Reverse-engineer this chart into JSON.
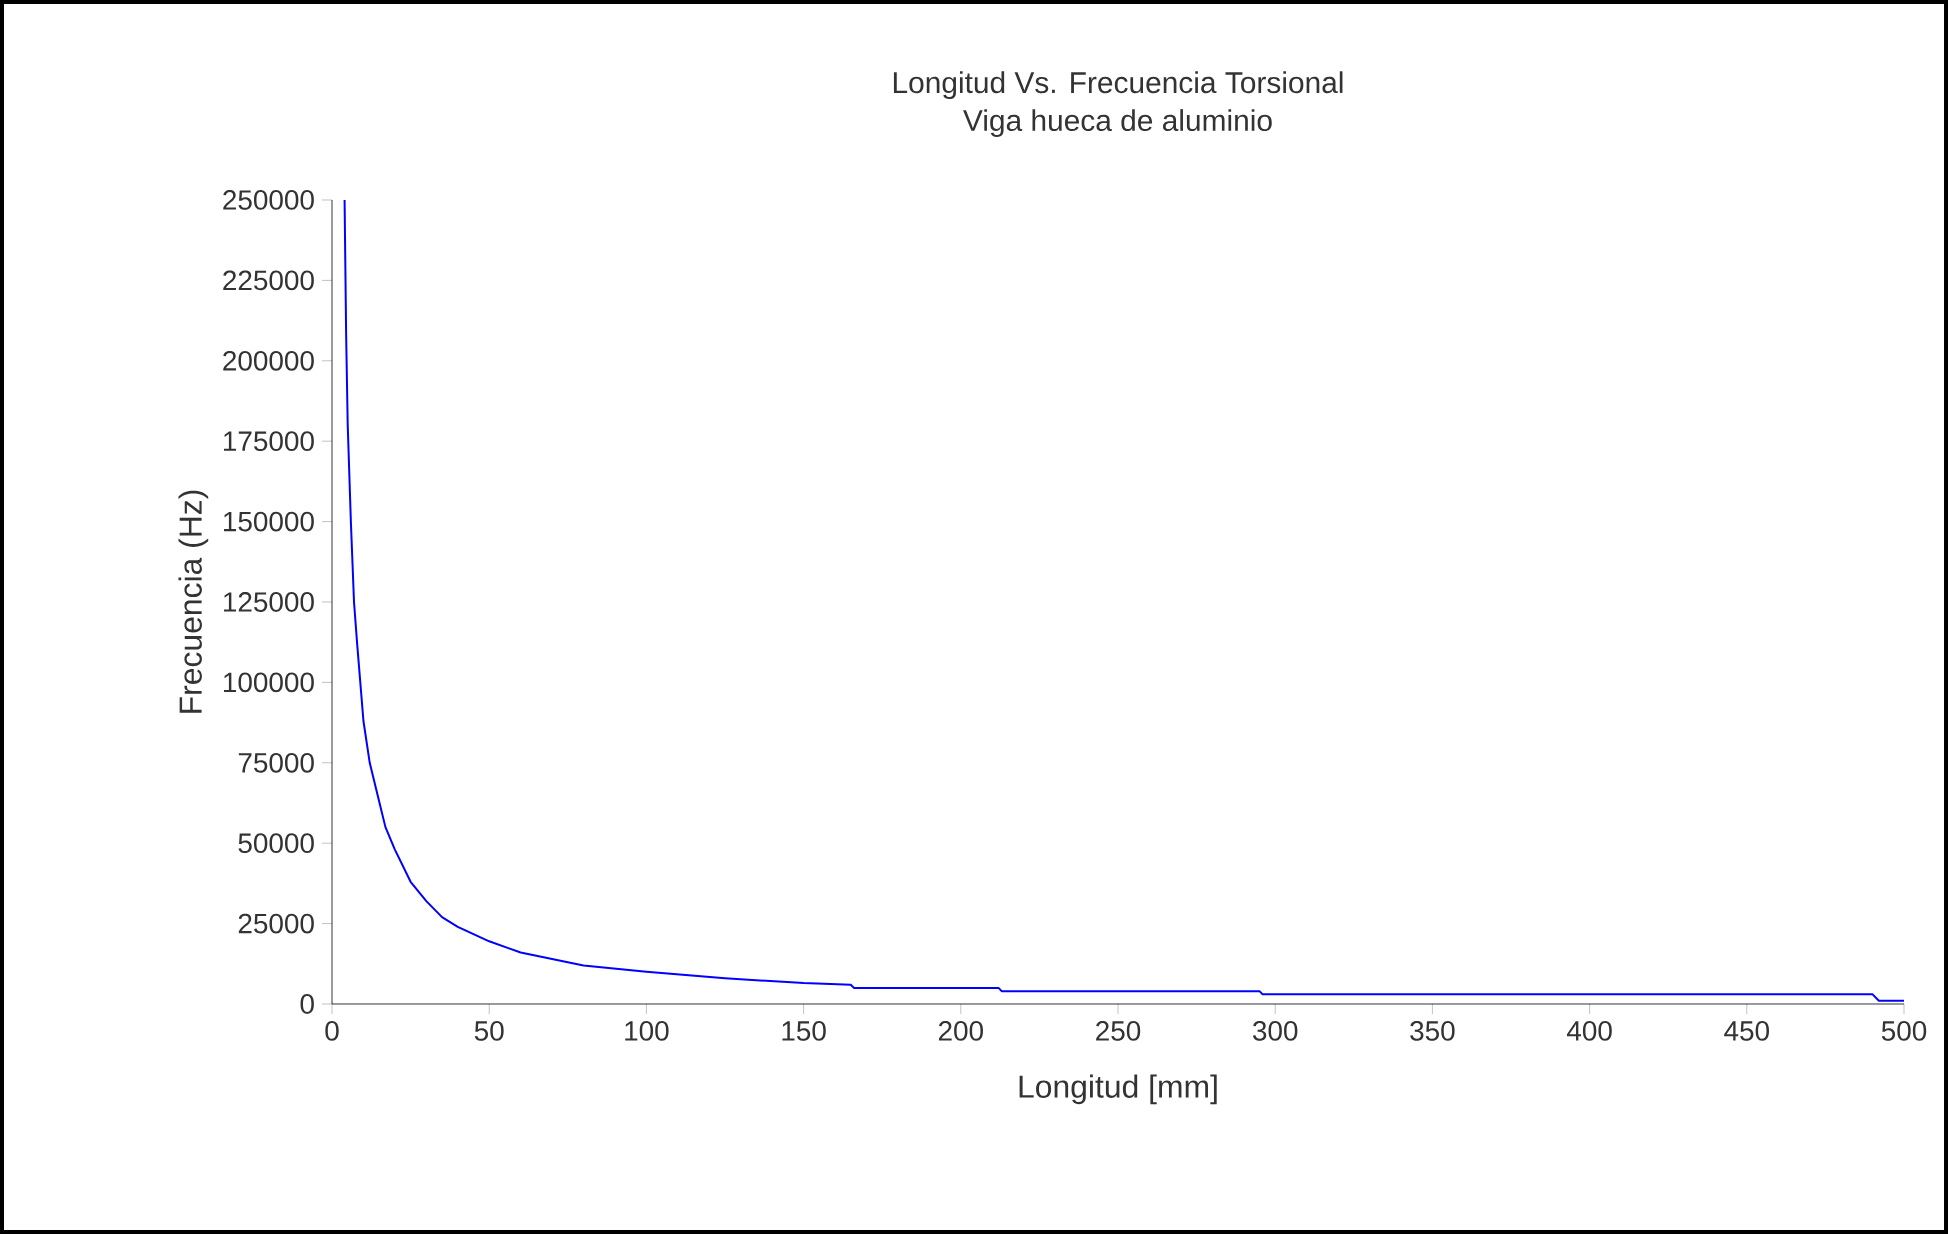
{
  "chart_data": {
    "type": "line",
    "title": "Longitud Vs. Frecuencia Torsional",
    "subtitle": "Viga hueca de aluminio",
    "xlabel": "Longitud  [mm]",
    "ylabel": "Frecuencia (Hz)",
    "xlim": [
      0,
      500
    ],
    "ylim": [
      0,
      250000
    ],
    "xticks": [
      0,
      50,
      100,
      150,
      200,
      250,
      300,
      350,
      400,
      450,
      500
    ],
    "yticks": [
      0,
      25000,
      50000,
      75000,
      100000,
      125000,
      150000,
      175000,
      200000,
      225000,
      250000
    ],
    "marker": "none",
    "line_style": "solid",
    "series": [
      {
        "color": "#0000ff",
        "x": [
          4,
          4.5,
          5,
          6,
          7,
          8,
          9,
          10,
          12,
          15,
          17,
          20,
          25,
          30,
          35,
          40,
          50,
          60,
          70,
          80,
          100,
          125,
          150,
          165,
          166,
          200,
          212,
          213,
          295,
          296,
          490,
          492,
          500
        ],
        "values": [
          250000,
          208000,
          180000,
          150000,
          125000,
          112000,
          100000,
          88000,
          75000,
          63000,
          55000,
          48000,
          38000,
          32000,
          27000,
          24000,
          19500,
          16000,
          14000,
          12000,
          10000,
          8000,
          6500,
          6000,
          5000,
          5000,
          5000,
          4000,
          4000,
          3000,
          3000,
          1000,
          1000
        ]
      }
    ]
  }
}
